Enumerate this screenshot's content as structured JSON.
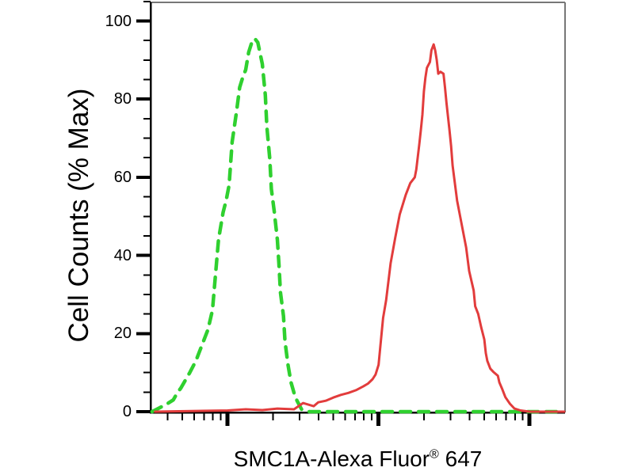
{
  "chart_data": {
    "type": "line",
    "subtype": "flow-cytometry-histogram-overlay",
    "title": "",
    "xlabel": {
      "main": "SMC1A-Alexa Fluor",
      "sup": "®",
      "suffix": " 647"
    },
    "ylabel": "Cell Counts (% Max)",
    "x_axis": {
      "scale": "log10",
      "range_log10": [
        0.49,
        3.235
      ],
      "major_ticks_log10": [
        1,
        2,
        3
      ],
      "minor_ticks_per_decade": [
        2,
        3,
        4,
        5,
        6,
        7,
        8,
        9
      ],
      "tick_labels": []
    },
    "y_axis": {
      "scale": "linear",
      "range": [
        0,
        105
      ],
      "major_ticks": [
        0,
        20,
        40,
        60,
        80,
        100
      ],
      "tick_labels": [
        "0",
        "20",
        "40",
        "60",
        "80",
        "100"
      ],
      "minor_tick_step": 5
    },
    "grid": false,
    "legend": false,
    "frame": {
      "axis_color": "#000000",
      "border_color": "#777777"
    },
    "series": [
      {
        "name": "green-dashed-curve",
        "color": "#2fd02f",
        "line_style": "dashed",
        "peak": {
          "x_log10": 1.18,
          "y_pct": 95.5
        },
        "points": [
          [
            0.5,
            0
          ],
          [
            0.55,
            1
          ],
          [
            0.6,
            2
          ],
          [
            0.64,
            3
          ],
          [
            0.67,
            5
          ],
          [
            0.69,
            6
          ],
          [
            0.72,
            8
          ],
          [
            0.75,
            10
          ],
          [
            0.79,
            13
          ],
          [
            0.82,
            16
          ],
          [
            0.85,
            19
          ],
          [
            0.87,
            21
          ],
          [
            0.9,
            26
          ],
          [
            0.92,
            35
          ],
          [
            0.94,
            44
          ],
          [
            0.97,
            51
          ],
          [
            0.99,
            54
          ],
          [
            1.01,
            58
          ],
          [
            1.03,
            69
          ],
          [
            1.06,
            77
          ],
          [
            1.08,
            83
          ],
          [
            1.1,
            85.5
          ],
          [
            1.12,
            87.5
          ],
          [
            1.14,
            92
          ],
          [
            1.16,
            94.5
          ],
          [
            1.18,
            95.5
          ],
          [
            1.2,
            94.5
          ],
          [
            1.23,
            89
          ],
          [
            1.25,
            81
          ],
          [
            1.26,
            73
          ],
          [
            1.28,
            64.5
          ],
          [
            1.29,
            57
          ],
          [
            1.31,
            51
          ],
          [
            1.33,
            44
          ],
          [
            1.34,
            38
          ],
          [
            1.35,
            30.5
          ],
          [
            1.37,
            24.5
          ],
          [
            1.38,
            18
          ],
          [
            1.4,
            12
          ],
          [
            1.42,
            7.5
          ],
          [
            1.44,
            4.8
          ],
          [
            1.46,
            2.8
          ],
          [
            1.49,
            0.6
          ],
          [
            1.54,
            0
          ],
          [
            3.23,
            0
          ]
        ]
      },
      {
        "name": "red-solid-curve",
        "color": "#e23c3c",
        "line_style": "solid",
        "peak": {
          "x_log10": 2.365,
          "y_pct": 94
        },
        "points": [
          [
            0.52,
            0
          ],
          [
            1.0,
            0.3
          ],
          [
            1.12,
            0.6
          ],
          [
            1.23,
            0.4
          ],
          [
            1.33,
            0.8
          ],
          [
            1.44,
            0.6
          ],
          [
            1.5,
            2.2
          ],
          [
            1.57,
            1.4
          ],
          [
            1.6,
            2.4
          ],
          [
            1.65,
            2.8
          ],
          [
            1.7,
            3.6
          ],
          [
            1.75,
            4.3
          ],
          [
            1.8,
            4.8
          ],
          [
            1.85,
            5.5
          ],
          [
            1.9,
            6.5
          ],
          [
            1.93,
            7.2
          ],
          [
            1.96,
            8.3
          ],
          [
            1.98,
            9.5
          ],
          [
            2.0,
            12
          ],
          [
            2.01,
            16
          ],
          [
            2.02,
            20
          ],
          [
            2.03,
            24
          ],
          [
            2.05,
            28.5
          ],
          [
            2.08,
            38
          ],
          [
            2.11,
            44.5
          ],
          [
            2.14,
            50.5
          ],
          [
            2.18,
            55.5
          ],
          [
            2.21,
            58.5
          ],
          [
            2.24,
            60
          ],
          [
            2.25,
            62
          ],
          [
            2.27,
            68.5
          ],
          [
            2.28,
            72
          ],
          [
            2.29,
            76
          ],
          [
            2.3,
            82
          ],
          [
            2.31,
            85.5
          ],
          [
            2.32,
            88
          ],
          [
            2.34,
            89.5
          ],
          [
            2.35,
            92.5
          ],
          [
            2.365,
            94
          ],
          [
            2.375,
            92.5
          ],
          [
            2.385,
            90
          ],
          [
            2.395,
            86.5
          ],
          [
            2.41,
            87
          ],
          [
            2.43,
            86.5
          ],
          [
            2.44,
            83
          ],
          [
            2.45,
            79
          ],
          [
            2.46,
            75.5
          ],
          [
            2.47,
            72
          ],
          [
            2.48,
            68
          ],
          [
            2.49,
            63
          ],
          [
            2.5,
            60
          ],
          [
            2.52,
            54
          ],
          [
            2.55,
            48
          ],
          [
            2.58,
            42
          ],
          [
            2.6,
            36
          ],
          [
            2.63,
            31
          ],
          [
            2.64,
            27
          ],
          [
            2.66,
            25
          ],
          [
            2.68,
            21.5
          ],
          [
            2.7,
            18.5
          ],
          [
            2.71,
            15
          ],
          [
            2.72,
            13
          ],
          [
            2.74,
            11
          ],
          [
            2.76,
            10.2
          ],
          [
            2.79,
            9.2
          ],
          [
            2.8,
            7.5
          ],
          [
            2.82,
            5.7
          ],
          [
            2.84,
            3.7
          ],
          [
            2.87,
            2
          ],
          [
            2.9,
            0.8
          ],
          [
            2.94,
            0.3
          ],
          [
            3.0,
            0
          ],
          [
            3.23,
            0
          ]
        ]
      }
    ]
  }
}
